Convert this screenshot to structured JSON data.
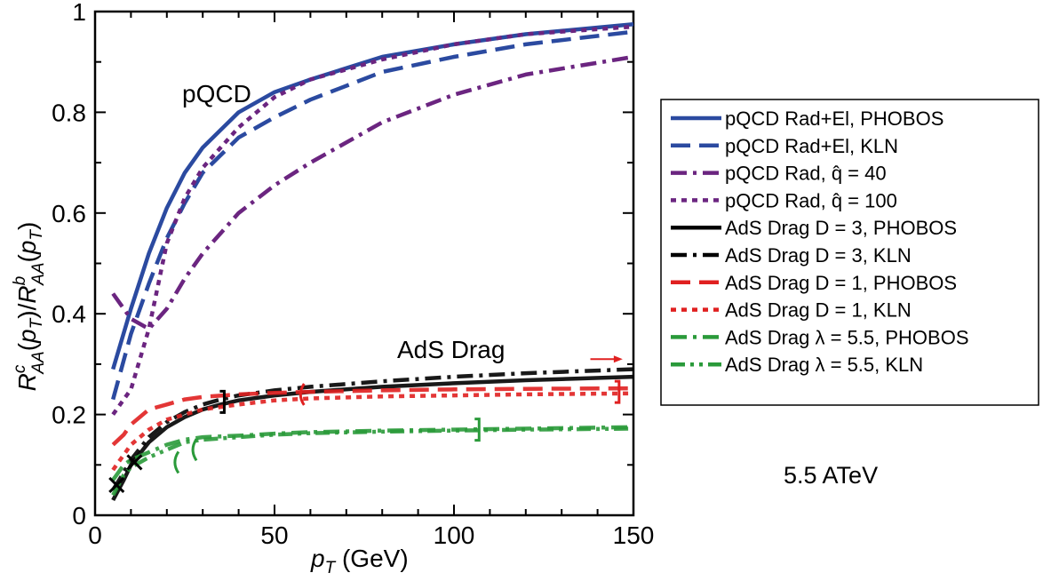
{
  "chart_data": {
    "type": "line",
    "title": "",
    "xlabel": "p_T (GeV)",
    "ylabel": "R^c_AA(p_T)/R^b_AA(p_T)",
    "xlim": [
      0,
      150
    ],
    "ylim": [
      0,
      1
    ],
    "xticks": [
      0,
      50,
      100,
      150
    ],
    "yticks": [
      0,
      0.2,
      0.4,
      0.6,
      0.8,
      1
    ],
    "xtick_labels": [
      "0",
      "50",
      "100",
      "150"
    ],
    "ytick_labels": [
      "0",
      "0.2",
      "0.4",
      "0.6",
      "0.8",
      "1"
    ],
    "annotations": {
      "pqcd": "pQCD",
      "ads_drag": "AdS Drag",
      "energy": "5.5 ATeV"
    },
    "legend_position": "right",
    "series": [
      {
        "name": "pQCD Rad+El, PHOBOS",
        "color": "#2b4aa0",
        "dash": "solid",
        "points": [
          [
            5,
            0.29
          ],
          [
            10,
            0.41
          ],
          [
            15,
            0.52
          ],
          [
            20,
            0.61
          ],
          [
            25,
            0.68
          ],
          [
            30,
            0.73
          ],
          [
            40,
            0.8
          ],
          [
            50,
            0.84
          ],
          [
            60,
            0.865
          ],
          [
            80,
            0.91
          ],
          [
            100,
            0.935
          ],
          [
            120,
            0.955
          ],
          [
            150,
            0.975
          ]
        ]
      },
      {
        "name": "pQCD Rad+El, KLN",
        "color": "#2b4aa0",
        "dash": "longdash",
        "points": [
          [
            5,
            0.23
          ],
          [
            10,
            0.36
          ],
          [
            15,
            0.46
          ],
          [
            20,
            0.55
          ],
          [
            25,
            0.62
          ],
          [
            30,
            0.68
          ],
          [
            40,
            0.75
          ],
          [
            50,
            0.79
          ],
          [
            60,
            0.825
          ],
          [
            80,
            0.88
          ],
          [
            100,
            0.91
          ],
          [
            120,
            0.935
          ],
          [
            150,
            0.96
          ]
        ]
      },
      {
        "name": "pQCD Rad, q = 40",
        "name_math": "pQCD Rad, q̂ = 40",
        "color": "#6b2580",
        "dash": "dashdot",
        "points": [
          [
            5,
            0.44
          ],
          [
            10,
            0.39
          ],
          [
            15,
            0.37
          ],
          [
            20,
            0.41
          ],
          [
            25,
            0.47
          ],
          [
            30,
            0.52
          ],
          [
            40,
            0.6
          ],
          [
            50,
            0.655
          ],
          [
            60,
            0.7
          ],
          [
            80,
            0.78
          ],
          [
            100,
            0.835
          ],
          [
            120,
            0.875
          ],
          [
            150,
            0.91
          ]
        ]
      },
      {
        "name": "pQCD Rad, q = 100",
        "name_math": "pQCD Rad, q̂ = 100",
        "color": "#6b2580",
        "dash": "dotted",
        "points": [
          [
            5,
            0.2
          ],
          [
            10,
            0.25
          ],
          [
            15,
            0.37
          ],
          [
            20,
            0.54
          ],
          [
            25,
            0.63
          ],
          [
            30,
            0.69
          ],
          [
            40,
            0.77
          ],
          [
            50,
            0.83
          ],
          [
            60,
            0.865
          ],
          [
            80,
            0.905
          ],
          [
            100,
            0.935
          ],
          [
            120,
            0.955
          ],
          [
            150,
            0.97
          ]
        ]
      },
      {
        "name": "AdS Drag D = 3, PHOBOS",
        "color": "#000000",
        "dash": "solid",
        "points": [
          [
            5,
            0.03
          ],
          [
            8,
            0.07
          ],
          [
            10,
            0.1
          ],
          [
            15,
            0.145
          ],
          [
            20,
            0.175
          ],
          [
            25,
            0.195
          ],
          [
            30,
            0.21
          ],
          [
            35,
            0.22
          ],
          [
            40,
            0.228
          ],
          [
            50,
            0.238
          ],
          [
            60,
            0.245
          ],
          [
            80,
            0.255
          ],
          [
            100,
            0.262
          ],
          [
            120,
            0.268
          ],
          [
            150,
            0.275
          ]
        ]
      },
      {
        "name": "AdS Drag D = 3, KLN",
        "color": "#000000",
        "dash": "dashdot",
        "points": [
          [
            5,
            0.05
          ],
          [
            8,
            0.085
          ],
          [
            10,
            0.11
          ],
          [
            15,
            0.155
          ],
          [
            20,
            0.185
          ],
          [
            25,
            0.205
          ],
          [
            30,
            0.22
          ],
          [
            35,
            0.23
          ],
          [
            40,
            0.238
          ],
          [
            50,
            0.248
          ],
          [
            60,
            0.255
          ],
          [
            80,
            0.266
          ],
          [
            100,
            0.275
          ],
          [
            120,
            0.282
          ],
          [
            150,
            0.29
          ]
        ]
      },
      {
        "name": "AdS Drag D = 1, PHOBOS",
        "color": "#e02020",
        "dash": "longdash",
        "points": [
          [
            5,
            0.14
          ],
          [
            8,
            0.16
          ],
          [
            10,
            0.18
          ],
          [
            15,
            0.21
          ],
          [
            20,
            0.22
          ],
          [
            25,
            0.23
          ],
          [
            30,
            0.235
          ],
          [
            40,
            0.24
          ],
          [
            50,
            0.243
          ],
          [
            60,
            0.245
          ],
          [
            80,
            0.248
          ],
          [
            100,
            0.25
          ],
          [
            120,
            0.251
          ],
          [
            150,
            0.252
          ]
        ]
      },
      {
        "name": "AdS Drag D = 1, KLN",
        "color": "#e02020",
        "dash": "dotted",
        "points": [
          [
            5,
            0.09
          ],
          [
            8,
            0.12
          ],
          [
            10,
            0.14
          ],
          [
            15,
            0.17
          ],
          [
            20,
            0.19
          ],
          [
            25,
            0.2
          ],
          [
            30,
            0.21
          ],
          [
            40,
            0.22
          ],
          [
            50,
            0.228
          ],
          [
            60,
            0.232
          ],
          [
            80,
            0.236
          ],
          [
            100,
            0.238
          ],
          [
            120,
            0.24
          ],
          [
            150,
            0.242
          ]
        ]
      },
      {
        "name": "AdS Drag λ = 5.5, PHOBOS",
        "color": "#2a9a3a",
        "dash": "dashdot",
        "points": [
          [
            5,
            0.07
          ],
          [
            8,
            0.1
          ],
          [
            10,
            0.11
          ],
          [
            15,
            0.125
          ],
          [
            20,
            0.14
          ],
          [
            25,
            0.15
          ],
          [
            30,
            0.155
          ],
          [
            40,
            0.158
          ],
          [
            50,
            0.162
          ],
          [
            60,
            0.165
          ],
          [
            80,
            0.168
          ],
          [
            100,
            0.17
          ],
          [
            120,
            0.172
          ],
          [
            150,
            0.175
          ]
        ]
      },
      {
        "name": "AdS Drag λ = 5.5, KLN",
        "color": "#2a9a3a",
        "dash": "dashdotdot",
        "points": [
          [
            5,
            0.04
          ],
          [
            8,
            0.08
          ],
          [
            10,
            0.095
          ],
          [
            15,
            0.115
          ],
          [
            20,
            0.13
          ],
          [
            25,
            0.145
          ],
          [
            30,
            0.15
          ],
          [
            40,
            0.155
          ],
          [
            50,
            0.16
          ],
          [
            60,
            0.163
          ],
          [
            80,
            0.166
          ],
          [
            100,
            0.168
          ],
          [
            120,
            0.17
          ],
          [
            150,
            0.172
          ]
        ]
      }
    ],
    "range_markers": [
      {
        "color": "#000000",
        "x": 36,
        "y": 0.225,
        "side": "right"
      },
      {
        "color": "#000000",
        "x": 6,
        "y": 0.06,
        "side": "cross"
      },
      {
        "color": "#000000",
        "x": 11,
        "y": 0.105,
        "side": "cross"
      },
      {
        "color": "#e02020",
        "x": 57,
        "y": 0.24,
        "side": "left"
      },
      {
        "color": "#e02020",
        "x": 146,
        "y": 0.245,
        "side": "right"
      },
      {
        "color": "#2a9a3a",
        "x": 107,
        "y": 0.17,
        "side": "right"
      },
      {
        "color": "#2a9a3a",
        "x": 27,
        "y": 0.13,
        "side": "left"
      },
      {
        "color": "#2a9a3a",
        "x": 22,
        "y": 0.105,
        "side": "left"
      }
    ],
    "arrow": {
      "color": "#e02020",
      "x_from": 138,
      "x_to": 147,
      "y": 0.31
    }
  }
}
